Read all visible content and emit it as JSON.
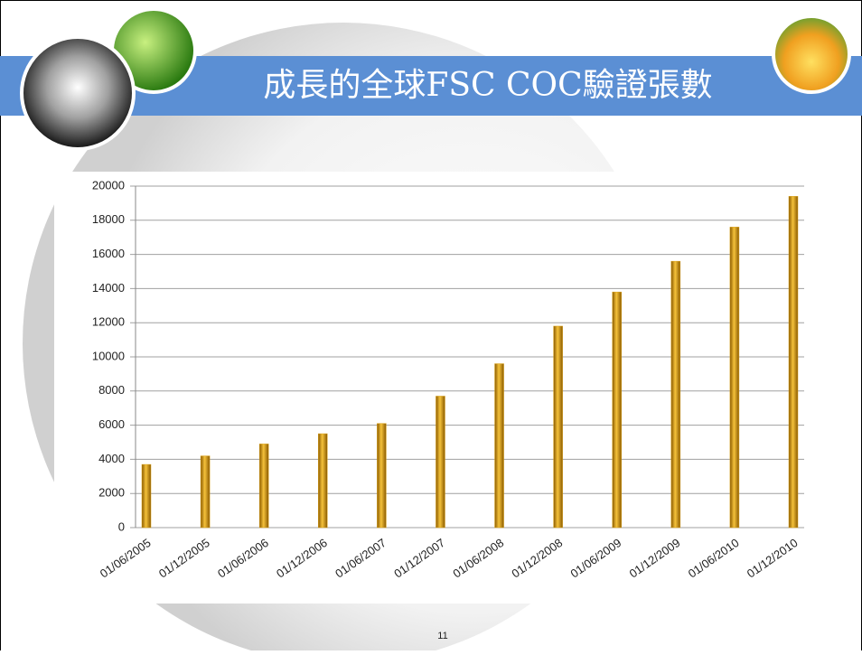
{
  "chart_data": {
    "type": "bar",
    "title": "成長的全球FSC COC驗證張數",
    "categories": [
      "01/06/2005",
      "01/12/2005",
      "01/06/2006",
      "01/12/2006",
      "01/06/2007",
      "01/12/2007",
      "01/06/2008",
      "01/12/2008",
      "01/06/2009",
      "01/12/2009",
      "01/06/2010",
      "01/12/2010"
    ],
    "values": [
      3700,
      4200,
      4900,
      5500,
      6100,
      7700,
      9600,
      11800,
      13800,
      15600,
      17600,
      19400
    ],
    "color": "#d9a016",
    "ylim": [
      0,
      20000
    ],
    "yticks": [
      0,
      2000,
      4000,
      6000,
      8000,
      10000,
      12000,
      14000,
      16000,
      18000,
      20000
    ],
    "grid": true
  },
  "page_number": "11"
}
